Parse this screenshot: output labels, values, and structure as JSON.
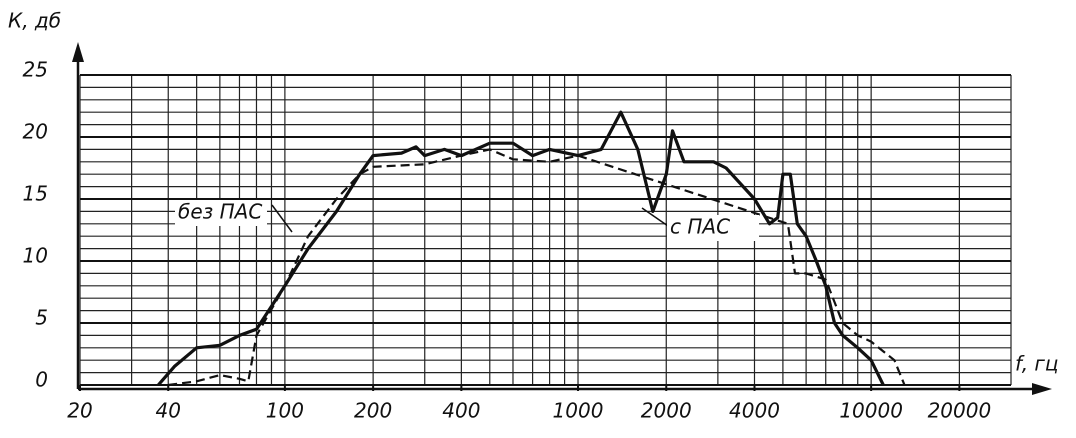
{
  "chart_data": {
    "type": "line",
    "ylabel": "К, дб",
    "xlabel": "f, гц",
    "xscale": "log",
    "xlim": [
      20,
      30000
    ],
    "ylim": [
      0,
      25
    ],
    "xticks": [
      20,
      40,
      100,
      200,
      400,
      1000,
      2000,
      4000,
      10000,
      20000
    ],
    "yticks": [
      0,
      5,
      10,
      15,
      20,
      25
    ],
    "xgrid": [
      20,
      30,
      40,
      50,
      60,
      70,
      80,
      90,
      100,
      200,
      300,
      400,
      500,
      600,
      700,
      800,
      900,
      1000,
      2000,
      3000,
      4000,
      5000,
      6000,
      7000,
      8000,
      9000,
      10000,
      20000,
      30000
    ],
    "ygrid": [
      0,
      1,
      2,
      3,
      4,
      5,
      6,
      7,
      8,
      9,
      10,
      11,
      12,
      13,
      14,
      15,
      16,
      17,
      18,
      19,
      20,
      21,
      22,
      23,
      24,
      25
    ],
    "series": [
      {
        "name": "с ПАС",
        "color": "#111111",
        "dash": false,
        "x": [
          37,
          42,
          50,
          60,
          70,
          80,
          100,
          120,
          150,
          180,
          200,
          250,
          280,
          300,
          350,
          400,
          500,
          600,
          700,
          800,
          1000,
          1200,
          1400,
          1600,
          1800,
          2000,
          2100,
          2300,
          2600,
          2900,
          3200,
          4000,
          4500,
          4800,
          5000,
          5300,
          5600,
          6000,
          6500,
          7000,
          7500,
          8000,
          9000,
          10000,
          11000
        ],
        "values": [
          0,
          1.5,
          3,
          3.2,
          4,
          4.5,
          8,
          11,
          14,
          17,
          18.5,
          18.7,
          19.2,
          18.5,
          19,
          18.5,
          19.5,
          19.5,
          18.5,
          19,
          18.5,
          19,
          22,
          19,
          14,
          17,
          20.5,
          18,
          18,
          18,
          17.5,
          15,
          13,
          13.5,
          17,
          17,
          13,
          12,
          10,
          8,
          5,
          4,
          3,
          2,
          0
        ]
      },
      {
        "name": "без ПАС",
        "color": "#111111",
        "dash": true,
        "x": [
          40,
          50,
          60,
          70,
          75,
          80,
          100,
          120,
          150,
          180,
          200,
          300,
          400,
          500,
          600,
          800,
          1000,
          5200,
          5500,
          6000,
          7000,
          8000,
          9000,
          10000,
          12000,
          13000
        ],
        "values": [
          0,
          0.3,
          0.8,
          0.5,
          0.3,
          4,
          8,
          12,
          15,
          17,
          17.6,
          17.8,
          18.5,
          19,
          18.2,
          18,
          18.5,
          13,
          9,
          9,
          8.5,
          5,
          4,
          3.5,
          2,
          0
        ]
      }
    ]
  }
}
